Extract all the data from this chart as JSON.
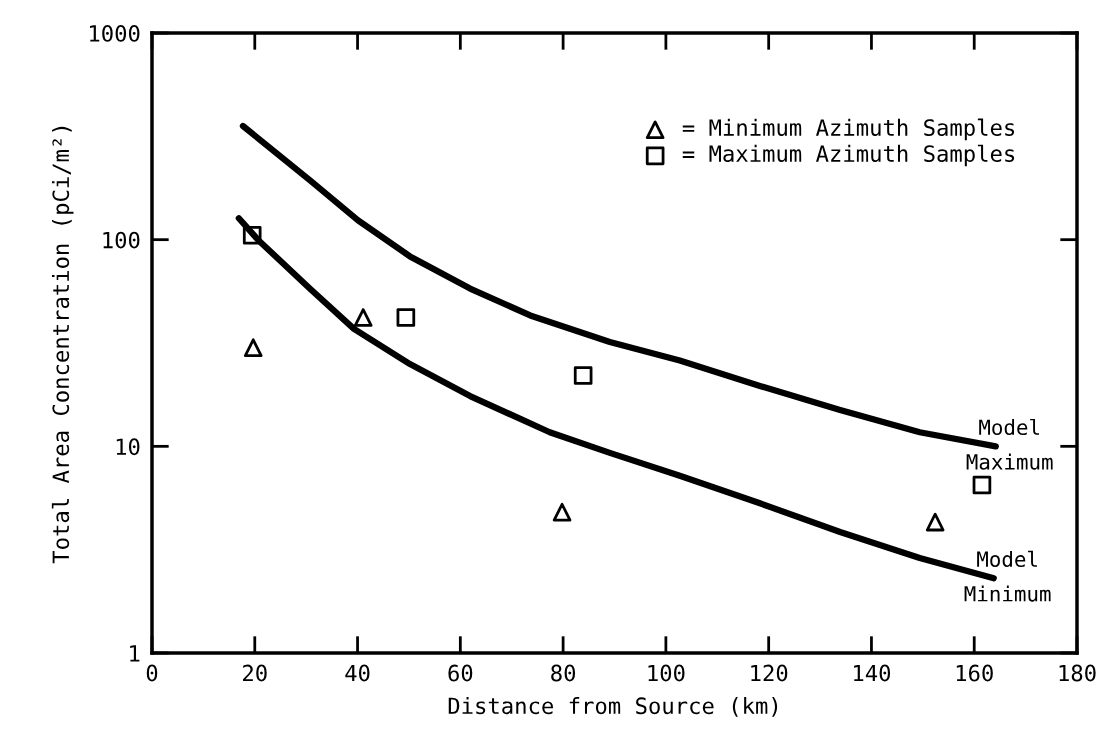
{
  "chart_data": {
    "type": "scatter",
    "xlabel": "Distance from Source (km)",
    "ylabel": "Total Area Concentration (pCi/m²)",
    "log": "y",
    "xlim": [
      0,
      180
    ],
    "xticks": [
      0,
      20,
      40,
      60,
      80,
      100,
      120,
      140,
      160,
      180
    ],
    "ylim": [
      1,
      1000
    ],
    "yticks": [
      1,
      10,
      100,
      1000
    ],
    "grid": false,
    "legend": "top right",
    "series": [
      {
        "name": "= Minimum Azimuth Samples",
        "marker": "triangle",
        "color": "#000000",
        "x": [
          19.7,
          41.1,
          79.8,
          152.4
        ],
        "values": [
          30,
          42,
          4.8,
          4.3
        ]
      },
      {
        "name": "= Maximum Azimuth Samples",
        "marker": "square",
        "color": "#000000",
        "x": [
          19.5,
          49.4,
          83.9,
          161.5
        ],
        "values": [
          105,
          42,
          22,
          6.5
        ]
      },
      {
        "name": "Model Maximum",
        "type": "line",
        "marker": "none",
        "line_style": "solid",
        "color": "#000000",
        "x": [
          17.7,
          30.7,
          40.1,
          50.2,
          61.9,
          73.6,
          89.1,
          102.7,
          118.3,
          133.9,
          149.4,
          164.2
        ],
        "values": [
          355,
          194,
          124,
          83,
          58,
          43,
          32,
          26,
          19.6,
          15,
          11.7,
          10
        ]
      },
      {
        "name": "Model Minimum",
        "type": "line",
        "marker": "none",
        "line_style": "solid",
        "color": "#000000",
        "x": [
          16.9,
          20.6,
          30.7,
          39.3,
          50.2,
          61.9,
          77.4,
          89.1,
          102.7,
          118.3,
          133.9,
          149.4,
          163.8
        ],
        "values": [
          127,
          100,
          58,
          37,
          25,
          17.5,
          11.7,
          9.3,
          7.2,
          5.3,
          3.85,
          2.88,
          2.3
        ]
      }
    ]
  }
}
